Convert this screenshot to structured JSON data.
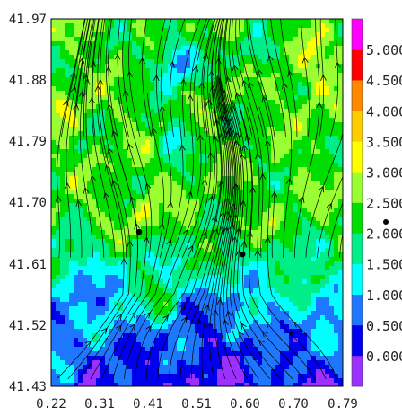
{
  "chart_data": {
    "type": "heatmap",
    "title": "",
    "xlabel": "",
    "ylabel": "",
    "xlim": [
      0.22,
      0.79
    ],
    "ylim": [
      41.43,
      41.97
    ],
    "x_ticks": [
      "0.22",
      "0.31",
      "0.41",
      "0.51",
      "0.60",
      "0.70",
      "0.79"
    ],
    "y_ticks": [
      "41.97",
      "41.88",
      "41.79",
      "41.70",
      "41.61",
      "41.52",
      "41.43"
    ],
    "overlay": "streamlines",
    "colorbar": {
      "labels": [
        "0.000",
        "0.500",
        "1.000",
        "1.500",
        "2.000",
        "2.500",
        "3.000",
        "3.500",
        "4.000",
        "4.500",
        "5.000"
      ],
      "bins": [
        {
          "from": null,
          "to": 0.0,
          "color": "#9b30ff"
        },
        {
          "from": 0.0,
          "to": 0.5,
          "color": "#0000ee"
        },
        {
          "from": 0.5,
          "to": 1.0,
          "color": "#1e78ff"
        },
        {
          "from": 1.0,
          "to": 1.5,
          "color": "#00ffff"
        },
        {
          "from": 1.5,
          "to": 2.0,
          "color": "#00ee88"
        },
        {
          "from": 2.0,
          "to": 2.5,
          "color": "#00dd00"
        },
        {
          "from": 2.5,
          "to": 3.0,
          "color": "#99ff33"
        },
        {
          "from": 3.0,
          "to": 3.5,
          "color": "#ffff00"
        },
        {
          "from": 3.5,
          "to": 4.0,
          "color": "#ffcc00"
        },
        {
          "from": 4.0,
          "to": 4.5,
          "color": "#ff8800"
        },
        {
          "from": 4.5,
          "to": 5.0,
          "color": "#ff0000"
        },
        {
          "from": 5.0,
          "to": null,
          "color": "#ff00ff"
        }
      ]
    },
    "markers": [
      {
        "x": 0.392,
        "y": 41.657
      },
      {
        "x": 0.594,
        "y": 41.624
      }
    ]
  }
}
